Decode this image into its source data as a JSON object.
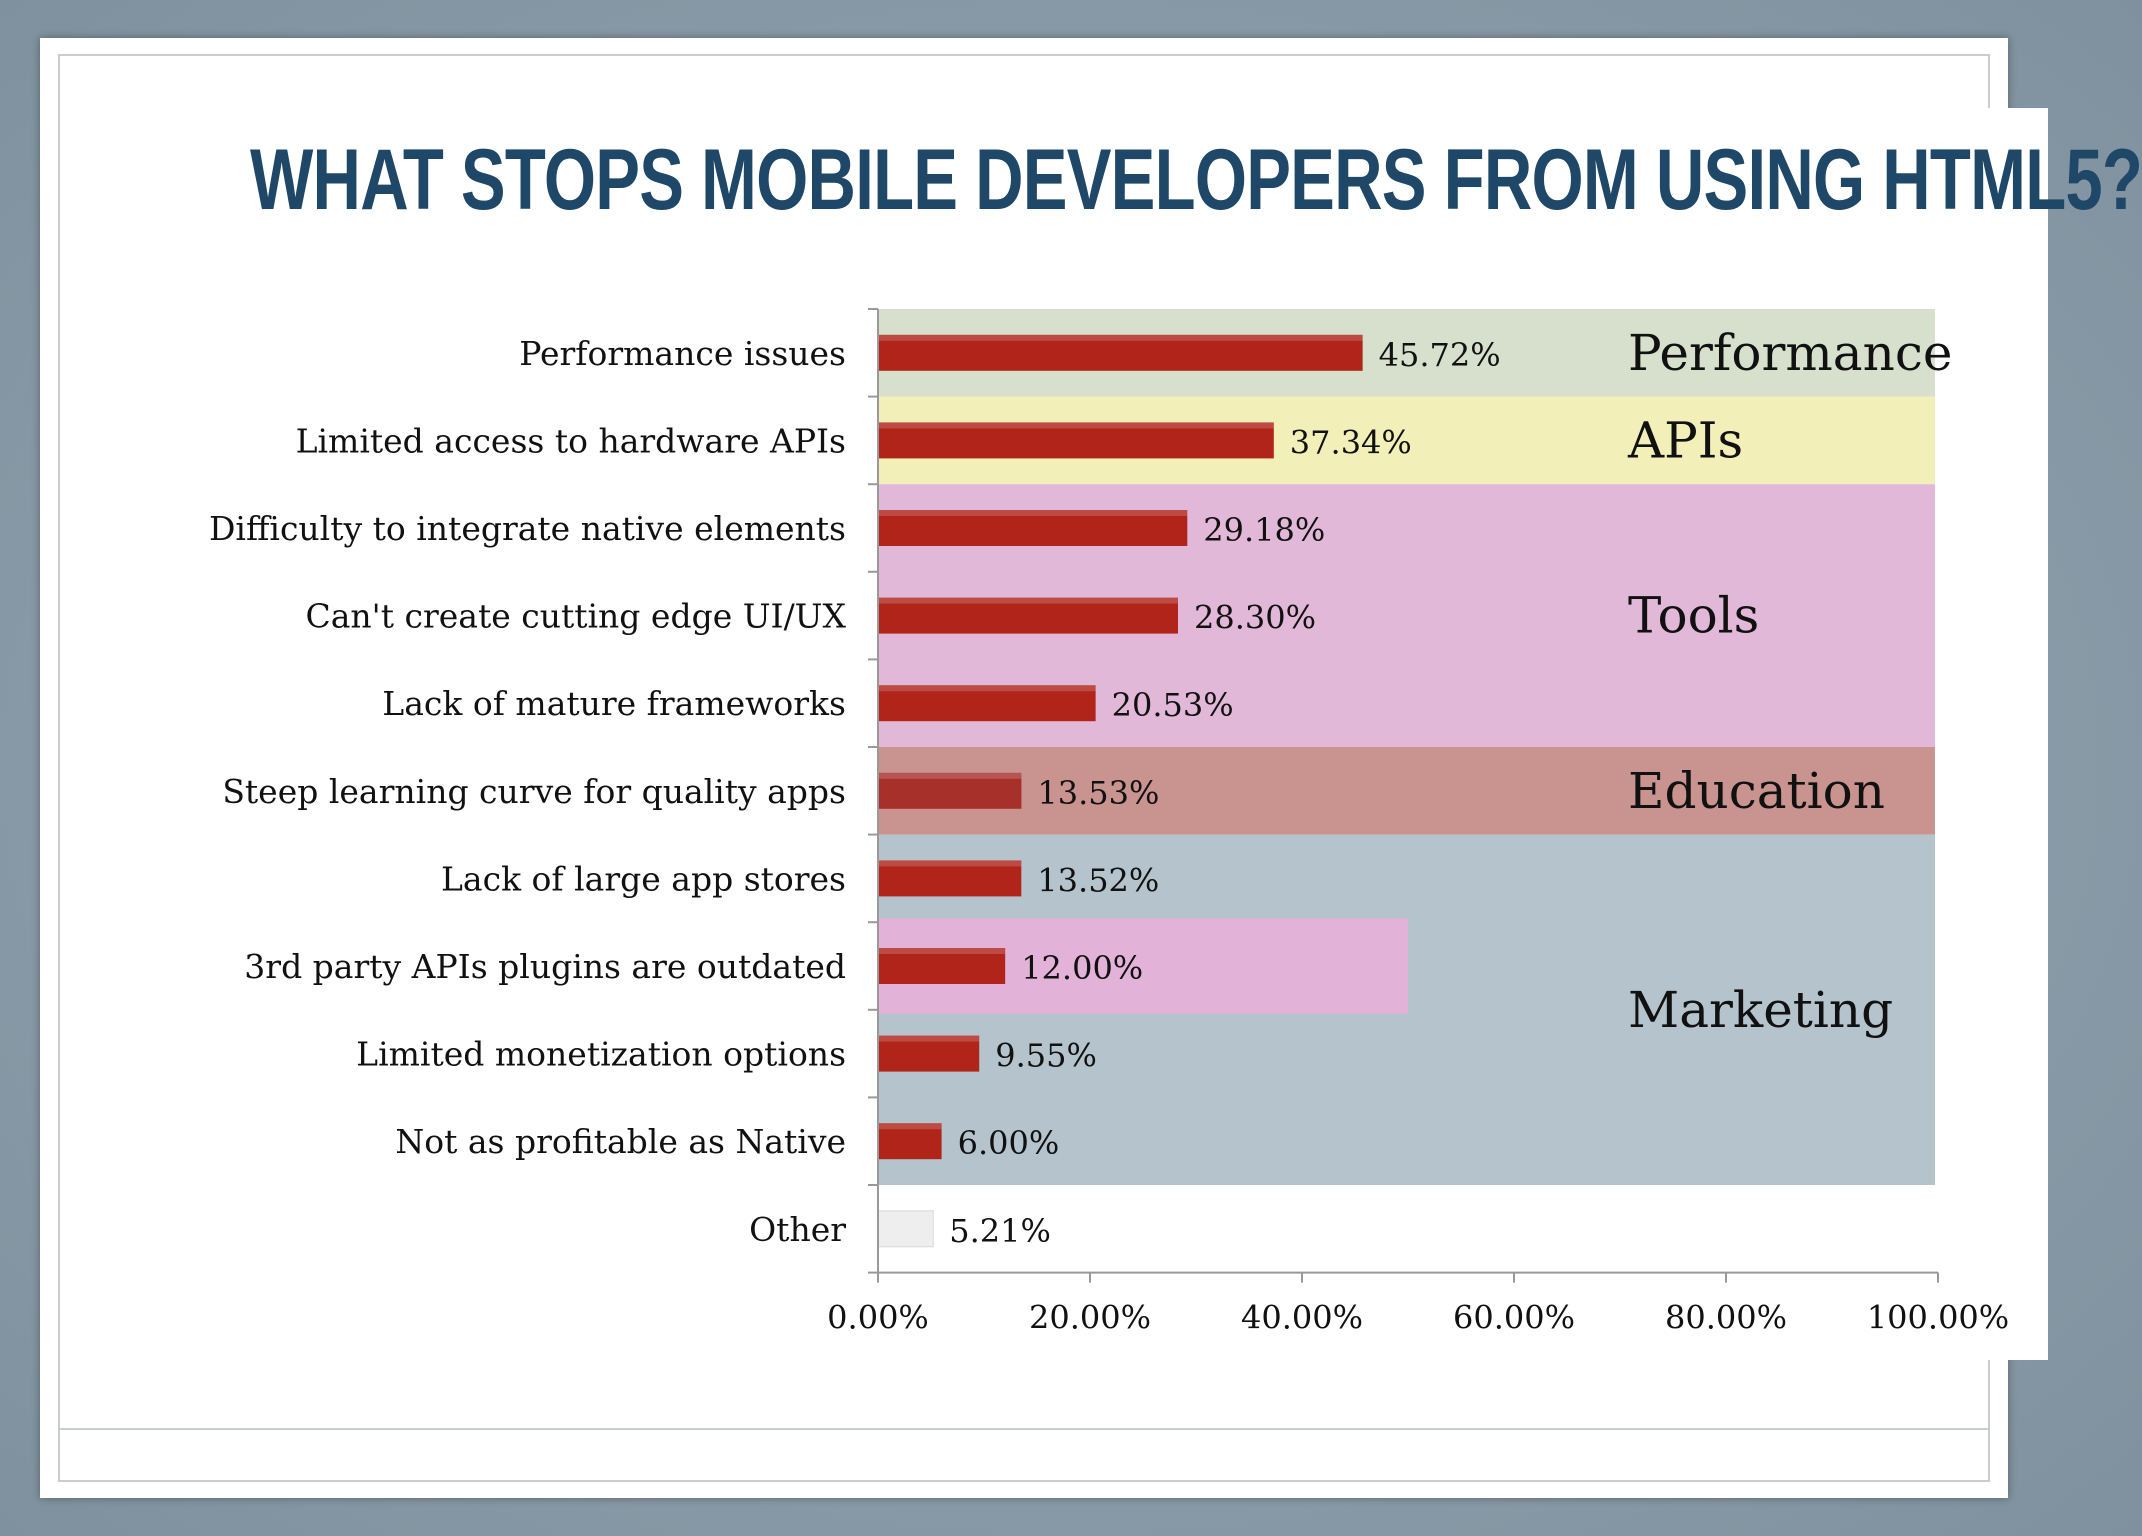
{
  "slide": {
    "title": "WHAT STOPS MOBILE DEVELOPERS FROM USING HTML5?"
  },
  "chart_data": {
    "type": "bar",
    "orientation": "horizontal",
    "title": "WHAT STOPS MOBILE DEVELOPERS FROM USING HTML5?",
    "xlabel": "",
    "ylabel": "",
    "xlim": [
      0,
      100
    ],
    "x_ticks": [
      "0.00%",
      "20.00%",
      "40.00%",
      "60.00%",
      "80.00%",
      "100.00%"
    ],
    "grid": false,
    "categories": [
      "Performance issues",
      "Limited access to hardware APIs",
      "Difficulty to integrate native elements",
      "Can't create cutting edge UI/UX",
      "Lack of mature frameworks",
      "Steep learning curve for quality apps",
      "Lack of large app stores",
      "3rd party APIs plugins are outdated",
      "Limited monetization options",
      "Not as profitable as Native",
      "Other"
    ],
    "values": [
      45.72,
      37.34,
      29.18,
      28.3,
      20.53,
      13.53,
      13.52,
      12.0,
      9.55,
      6.0,
      5.21
    ],
    "value_labels": [
      "45.72%",
      "37.34%",
      "29.18%",
      "28.30%",
      "20.53%",
      "13.53%",
      "13.52%",
      "12.00%",
      "9.55%",
      "6.00%",
      "5.21%"
    ],
    "bar_colors": [
      "#b0241a",
      "#b0241a",
      "#b0241a",
      "#b0241a",
      "#b0241a",
      "#a8302b",
      "#b0241a",
      "#b0241a",
      "#b0241a",
      "#b0241a",
      "#eeeeee"
    ],
    "value_label_colors": [
      "#111111",
      "#111111",
      "#111111",
      "#111111",
      "#111111",
      "#5a2a2a",
      "#111111",
      "#111111",
      "#111111",
      "#111111",
      "#111111"
    ],
    "groups": [
      {
        "label": "Performance",
        "rows": [
          0,
          0
        ],
        "color": "#d6e0cc"
      },
      {
        "label": "APIs",
        "rows": [
          1,
          1
        ],
        "color": "#f2efb8"
      },
      {
        "label": "Tools",
        "rows": [
          2,
          4
        ],
        "color": "#e2b8d8"
      },
      {
        "label": "Education",
        "rows": [
          5,
          5
        ],
        "color": "#c9938f"
      },
      {
        "label": "Marketing",
        "rows": [
          6,
          9
        ],
        "color": "#b4c3cc"
      }
    ],
    "highlight": {
      "row": 7,
      "x_to": 50,
      "color": "#e2b2d8"
    }
  }
}
